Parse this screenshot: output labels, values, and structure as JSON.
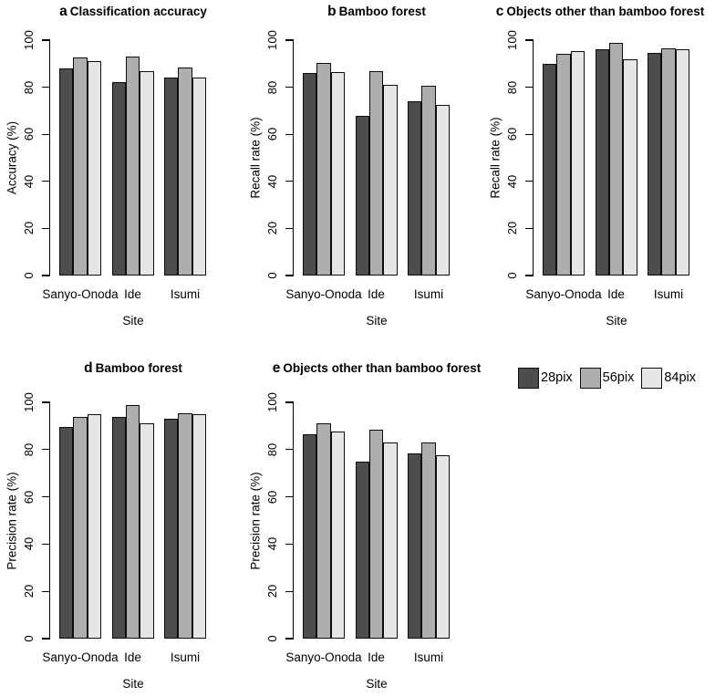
{
  "figure": {
    "background": "#ffffff",
    "legend": {
      "items": [
        {
          "label": "28pix",
          "color": "#4D4D4D"
        },
        {
          "label": "56pix",
          "color": "#AEAEAE"
        },
        {
          "label": "84pix",
          "color": "#E6E6E6"
        }
      ]
    }
  },
  "chart_data": [
    {
      "type": "bar",
      "letter": "a",
      "title": "Classification accuracy",
      "xlabel": "Site",
      "ylabel": "Accuracy (%)",
      "ylim": [
        0,
        100
      ],
      "yticks": [
        0,
        20,
        40,
        60,
        80,
        100
      ],
      "grid": false,
      "legend_position": "shared-top-right-of-bottom-row",
      "categories": [
        "Sanyo-Onoda",
        "Ide",
        "Isumi"
      ],
      "series": [
        {
          "name": "28pix",
          "color": "#4D4D4D",
          "values": [
            88,
            82,
            84
          ]
        },
        {
          "name": "56pix",
          "color": "#AEAEAE",
          "values": [
            92.5,
            93,
            88.5
          ]
        },
        {
          "name": "84pix",
          "color": "#E6E6E6",
          "values": [
            91,
            87,
            84
          ]
        }
      ]
    },
    {
      "type": "bar",
      "letter": "b",
      "title": "Bamboo forest",
      "xlabel": "Site",
      "ylabel": "Recall rate (%)",
      "ylim": [
        0,
        100
      ],
      "yticks": [
        0,
        20,
        40,
        60,
        80,
        100
      ],
      "grid": false,
      "categories": [
        "Sanyo-Onoda",
        "Ide",
        "Isumi"
      ],
      "series": [
        {
          "name": "28pix",
          "color": "#4D4D4D",
          "values": [
            86,
            68,
            74
          ]
        },
        {
          "name": "56pix",
          "color": "#AEAEAE",
          "values": [
            90.5,
            87,
            80.5
          ]
        },
        {
          "name": "84pix",
          "color": "#E6E6E6",
          "values": [
            86.5,
            81,
            72.5
          ]
        }
      ]
    },
    {
      "type": "bar",
      "letter": "c",
      "title": "Objects other than bamboo forest",
      "xlabel": "Site",
      "ylabel": "Recall rate (%)",
      "ylim": [
        0,
        100
      ],
      "yticks": [
        0,
        20,
        40,
        60,
        80,
        100
      ],
      "grid": false,
      "categories": [
        "Sanyo-Onoda",
        "Ide",
        "Isumi"
      ],
      "series": [
        {
          "name": "28pix",
          "color": "#4D4D4D",
          "values": [
            90,
            96,
            94.5
          ]
        },
        {
          "name": "56pix",
          "color": "#AEAEAE",
          "values": [
            94,
            99,
            96.5
          ]
        },
        {
          "name": "84pix",
          "color": "#E6E6E6",
          "values": [
            95.5,
            92,
            96
          ]
        }
      ]
    },
    {
      "type": "bar",
      "letter": "d",
      "title": "Bamboo forest",
      "xlabel": "Site",
      "ylabel": "Precision rate (%)",
      "ylim": [
        0,
        100
      ],
      "yticks": [
        0,
        20,
        40,
        60,
        80,
        100
      ],
      "grid": false,
      "categories": [
        "Sanyo-Onoda",
        "Ide",
        "Isumi"
      ],
      "series": [
        {
          "name": "28pix",
          "color": "#4D4D4D",
          "values": [
            89.5,
            94,
            93
          ]
        },
        {
          "name": "56pix",
          "color": "#AEAEAE",
          "values": [
            94,
            99,
            95.5
          ]
        },
        {
          "name": "84pix",
          "color": "#E6E6E6",
          "values": [
            95,
            91,
            95
          ]
        }
      ]
    },
    {
      "type": "bar",
      "letter": "e",
      "title": "Objects other than bamboo forest",
      "xlabel": "Site",
      "ylabel": "Precision rate (%)",
      "ylim": [
        0,
        100
      ],
      "yticks": [
        0,
        20,
        40,
        60,
        80,
        100
      ],
      "grid": false,
      "categories": [
        "Sanyo-Onoda",
        "Ide",
        "Isumi"
      ],
      "series": [
        {
          "name": "28pix",
          "color": "#4D4D4D",
          "values": [
            86.5,
            75,
            78.5
          ]
        },
        {
          "name": "56pix",
          "color": "#AEAEAE",
          "values": [
            91,
            88.5,
            83
          ]
        },
        {
          "name": "84pix",
          "color": "#E6E6E6",
          "values": [
            87.5,
            83,
            77.5
          ]
        }
      ]
    }
  ]
}
